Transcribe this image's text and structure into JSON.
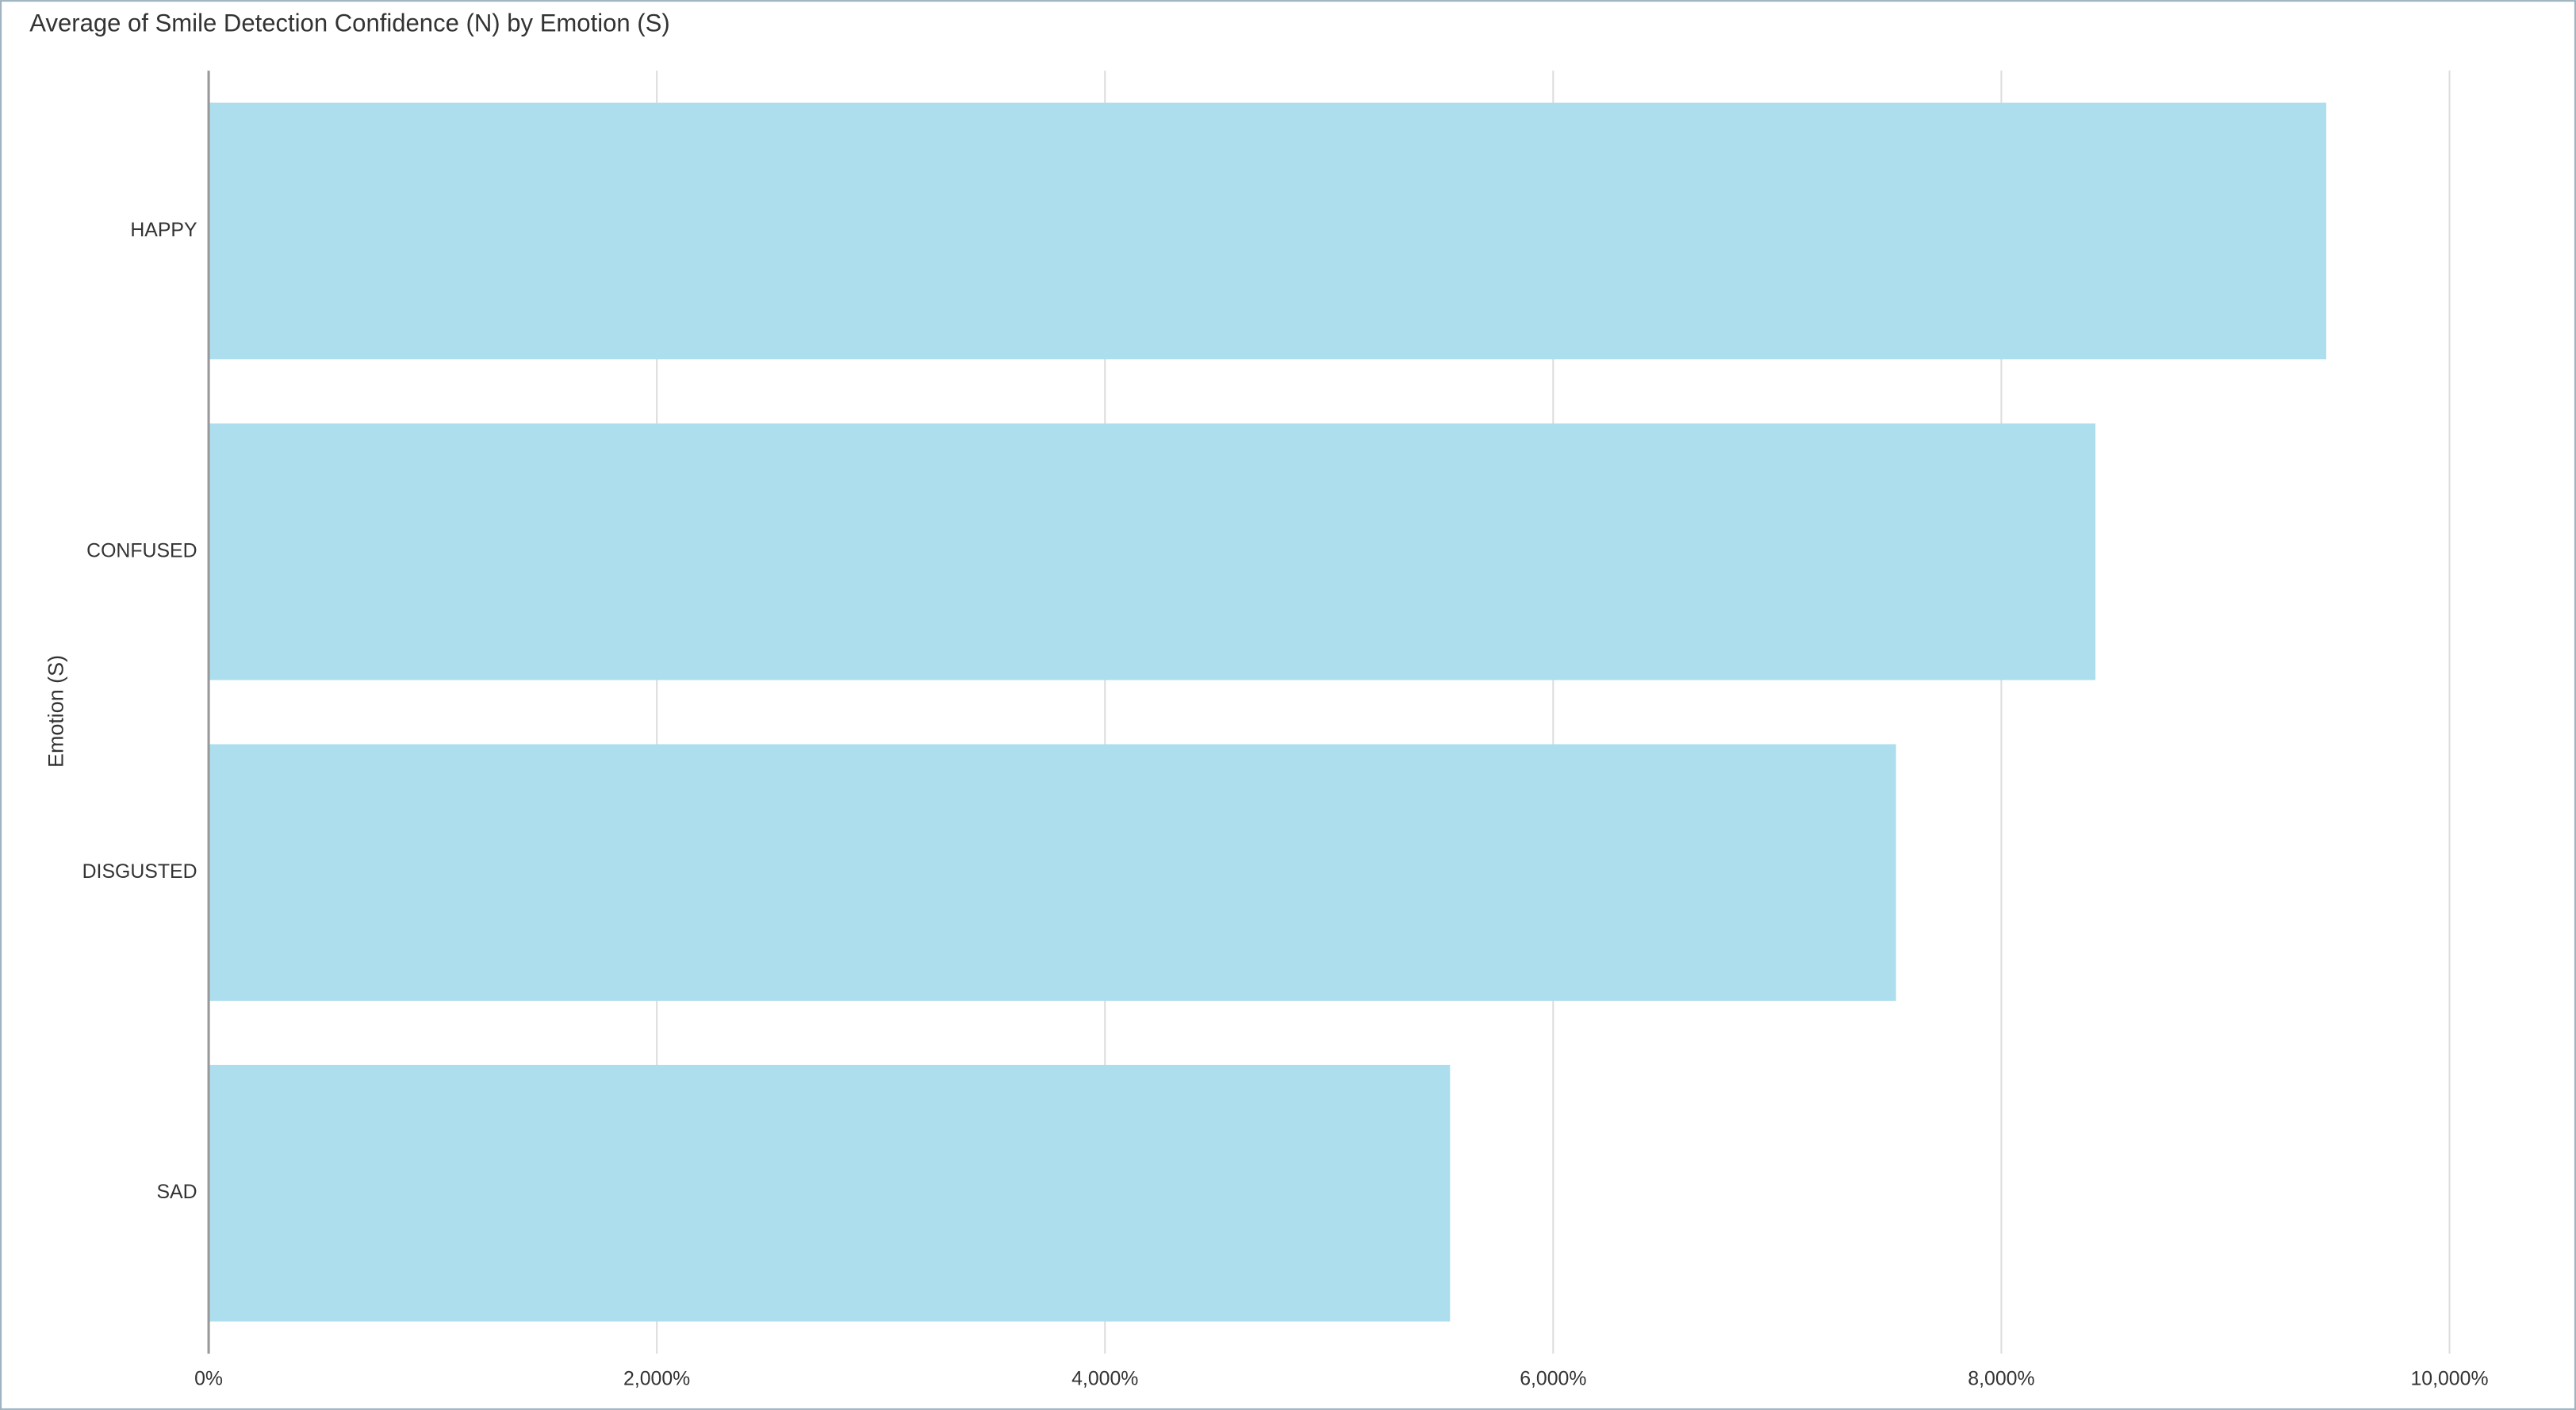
{
  "chart_data": {
    "type": "bar",
    "orientation": "horizontal",
    "title": "Average of Smile Detection Confidence (N) by Emotion (S)",
    "y_label": "Emotion (S)",
    "categories": [
      "HAPPY",
      "CONFUSED",
      "DISGUSTED",
      "SAD"
    ],
    "values": [
      9450,
      8420,
      7530,
      5540
    ],
    "color": "#addeed",
    "xlim": [
      0,
      10000
    ],
    "xticks": [
      {
        "value": 0,
        "label": "0%"
      },
      {
        "value": 2000,
        "label": "2,000%"
      },
      {
        "value": 4000,
        "label": "4,000%"
      },
      {
        "value": 6000,
        "label": "6,000%"
      },
      {
        "value": 8000,
        "label": "8,000%"
      },
      {
        "value": 10000,
        "label": "10,000%"
      }
    ],
    "grid": true
  }
}
